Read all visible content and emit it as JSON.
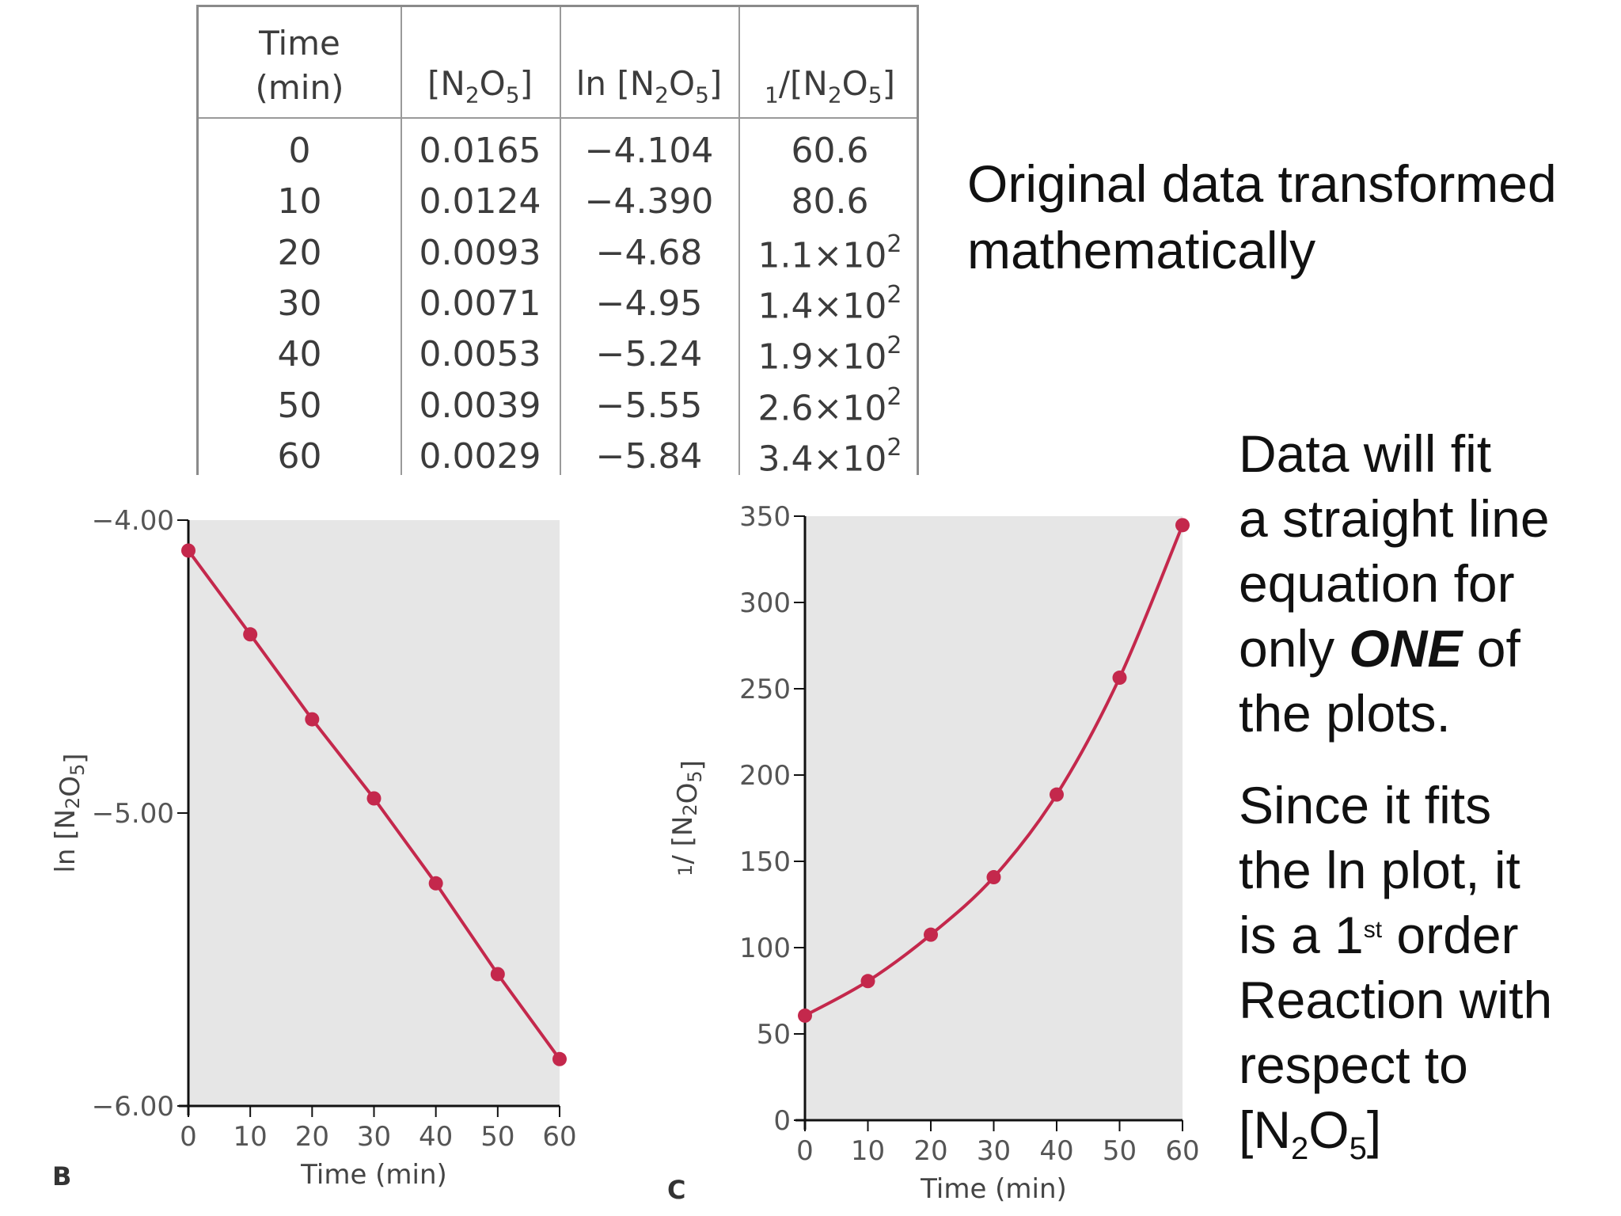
{
  "table": {
    "headers": [
      "Time (min)",
      "[N2O5]",
      "ln [N2O5]",
      "1/[N2O5]"
    ],
    "rows": [
      {
        "time": "0",
        "conc": "0.0165",
        "ln": "−4.104",
        "inv": "60.6"
      },
      {
        "time": "10",
        "conc": "0.0124",
        "ln": "−4.390",
        "inv": "80.6"
      },
      {
        "time": "20",
        "conc": "0.0093",
        "ln": "−4.68",
        "inv": "1.1×10",
        "inv_exp": "2"
      },
      {
        "time": "30",
        "conc": "0.0071",
        "ln": "−4.95",
        "inv": "1.4×10",
        "inv_exp": "2"
      },
      {
        "time": "40",
        "conc": "0.0053",
        "ln": "−5.24",
        "inv": "1.9×10",
        "inv_exp": "2"
      },
      {
        "time": "50",
        "conc": "0.0039",
        "ln": "−5.55",
        "inv": "2.6×10",
        "inv_exp": "2"
      },
      {
        "time": "60",
        "conc": "0.0029",
        "ln": "−5.84",
        "inv": "3.4×10",
        "inv_exp": "2"
      }
    ]
  },
  "intro_text": [
    "Original data transformed",
    "mathematically"
  ],
  "notes": {
    "p1": [
      "Data will fit",
      "a straight line",
      "equation for"
    ],
    "p1_only": "only ",
    "p1_one": "ONE",
    "p1_of": " of",
    "p1_end": "the plots.",
    "p2": [
      "Since it fits",
      "the ln plot, it"
    ],
    "p2_is": "is a 1",
    "p2_st": "st",
    "p2_order": " order",
    "p2_rest": [
      "Reaction with",
      "respect to"
    ],
    "p2_species": "[N2O5]"
  },
  "colors": {
    "series": "#c4284c",
    "plot_bg": "#e6e6e6",
    "axis": "#111111"
  },
  "chart_data": [
    {
      "type": "line",
      "panel": "B",
      "xlabel": "Time (min)",
      "ylabel": "ln [N2O5]",
      "xlim": [
        0,
        60
      ],
      "ylim": [
        -6.0,
        -4.0
      ],
      "xticks": [
        0,
        10,
        20,
        30,
        40,
        50,
        60
      ],
      "yticks": [
        -6.0,
        -5.0,
        -4.0
      ],
      "ytick_labels": [
        "−6.00",
        "−5.00",
        "−4.00"
      ],
      "x": [
        0,
        10,
        20,
        30,
        40,
        50,
        60
      ],
      "y": [
        -4.104,
        -4.39,
        -4.68,
        -4.95,
        -5.24,
        -5.55,
        -5.84
      ],
      "grid": false
    },
    {
      "type": "line",
      "panel": "C",
      "xlabel": "Time (min)",
      "ylabel": "1/ [N2O5]",
      "xlim": [
        0,
        60
      ],
      "ylim": [
        0,
        350
      ],
      "xticks": [
        0,
        10,
        20,
        30,
        40,
        50,
        60
      ],
      "yticks": [
        0,
        50,
        100,
        150,
        200,
        250,
        300,
        350
      ],
      "ytick_labels": [
        "0",
        "50",
        "100",
        "150",
        "200",
        "250",
        "300",
        "350"
      ],
      "x": [
        0,
        10,
        20,
        30,
        40,
        50,
        60
      ],
      "y": [
        60.6,
        80.6,
        107.5,
        140.8,
        188.7,
        256.4,
        344.8
      ],
      "grid": false
    }
  ]
}
